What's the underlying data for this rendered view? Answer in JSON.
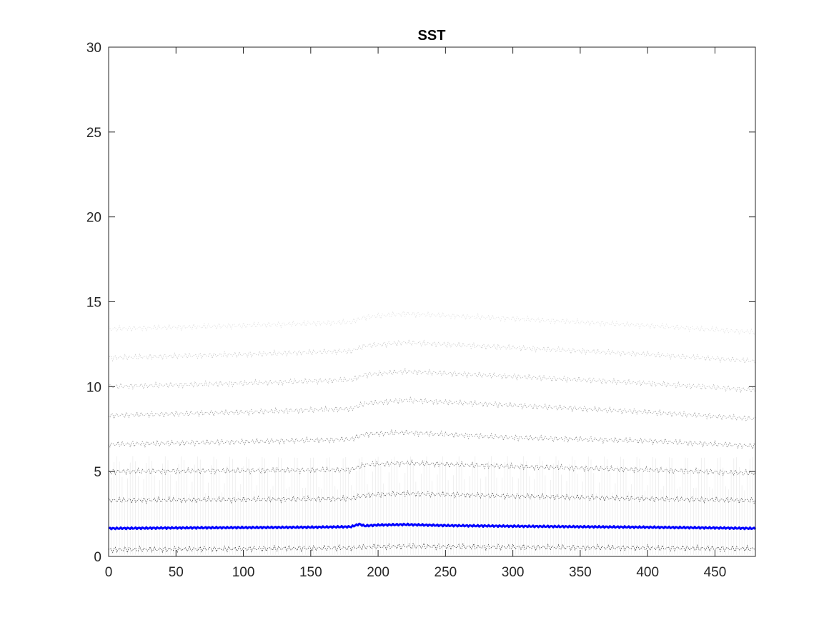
{
  "chart_data": {
    "type": "line",
    "title": "SST",
    "xlabel": "",
    "ylabel": "",
    "xlim": [
      0,
      480
    ],
    "ylim": [
      0,
      30
    ],
    "xticks": [
      0,
      50,
      100,
      150,
      200,
      250,
      300,
      350,
      400,
      450
    ],
    "yticks": [
      0,
      5,
      10,
      15,
      20,
      25,
      30
    ],
    "grid": false,
    "legend": "none",
    "colors": {
      "highlight": "#0000ff",
      "bands": "#000000",
      "axes": "#262626"
    },
    "highlight_series": {
      "x": [
        0,
        50,
        100,
        150,
        180,
        186,
        190,
        200,
        220,
        250,
        300,
        350,
        400,
        450,
        480
      ],
      "y": [
        1.65,
        1.68,
        1.7,
        1.72,
        1.75,
        1.9,
        1.8,
        1.85,
        1.88,
        1.82,
        1.78,
        1.75,
        1.72,
        1.68,
        1.65
      ]
    },
    "background_series": [
      {
        "x": [
          0,
          100,
          180,
          190,
          220,
          300,
          400,
          480
        ],
        "y": [
          0.4,
          0.45,
          0.5,
          0.55,
          0.6,
          0.55,
          0.5,
          0.45
        ]
      },
      {
        "x": [
          0,
          100,
          180,
          190,
          220,
          300,
          400,
          480
        ],
        "y": [
          3.3,
          3.35,
          3.4,
          3.6,
          3.7,
          3.55,
          3.4,
          3.3
        ]
      },
      {
        "x": [
          0,
          100,
          180,
          190,
          220,
          300,
          400,
          480
        ],
        "y": [
          5.0,
          5.05,
          5.1,
          5.4,
          5.5,
          5.3,
          5.1,
          4.9
        ]
      },
      {
        "x": [
          0,
          100,
          180,
          190,
          220,
          300,
          400,
          480
        ],
        "y": [
          6.6,
          6.75,
          6.9,
          7.2,
          7.3,
          7.0,
          6.8,
          6.5
        ]
      },
      {
        "x": [
          0,
          100,
          180,
          190,
          220,
          300,
          400,
          480
        ],
        "y": [
          8.3,
          8.5,
          8.7,
          9.0,
          9.2,
          8.9,
          8.5,
          8.1
        ]
      },
      {
        "x": [
          0,
          100,
          180,
          190,
          220,
          300,
          400,
          480
        ],
        "y": [
          10.0,
          10.2,
          10.4,
          10.7,
          10.9,
          10.6,
          10.2,
          9.8
        ]
      },
      {
        "x": [
          0,
          100,
          180,
          190,
          220,
          300,
          400,
          480
        ],
        "y": [
          11.7,
          11.9,
          12.1,
          12.4,
          12.6,
          12.3,
          11.9,
          11.5
        ]
      },
      {
        "x": [
          0,
          100,
          180,
          190,
          220,
          300,
          400,
          480
        ],
        "y": [
          13.4,
          13.6,
          13.8,
          14.1,
          14.3,
          14.0,
          13.6,
          13.2
        ]
      }
    ]
  }
}
